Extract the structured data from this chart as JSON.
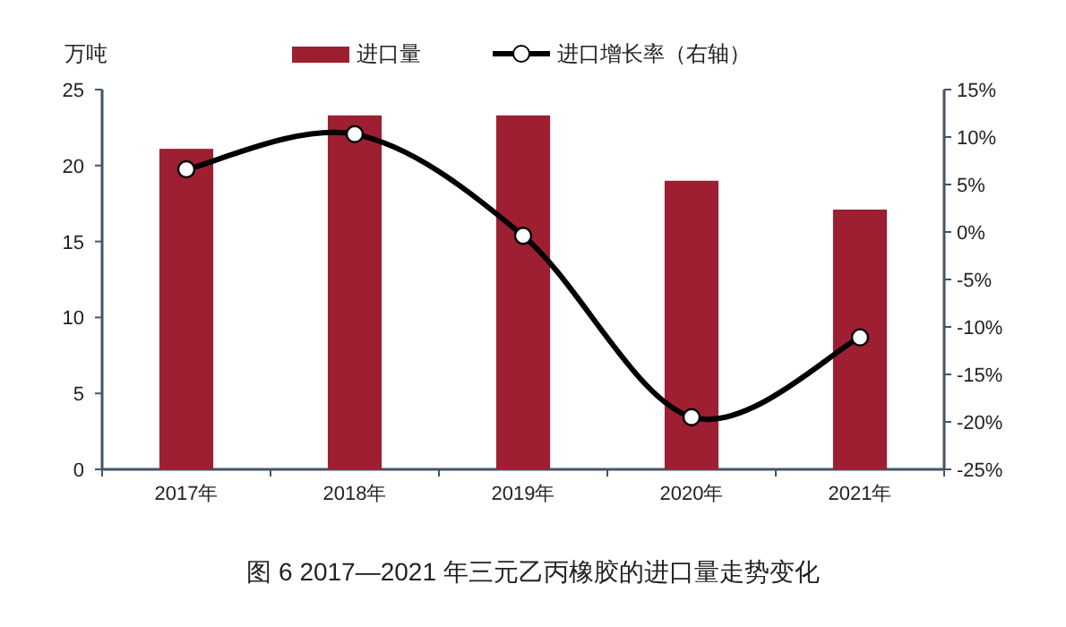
{
  "chart_data": {
    "type": "bar",
    "ylabel": "万吨",
    "categories": [
      "2017年",
      "2018年",
      "2019年",
      "2020年",
      "2021年"
    ],
    "series": [
      {
        "name": "进口量",
        "color": "#9e1f32",
        "values": [
          21.1,
          23.3,
          23.3,
          19.0,
          17.1
        ]
      },
      {
        "name": "进口增长率（右轴）",
        "type": "line",
        "axis": "y2",
        "color": "#000000",
        "marker": "circle",
        "values": [
          6.6,
          10.3,
          -0.4,
          -19.5,
          -11.1
        ]
      }
    ],
    "ylim": [
      0,
      25
    ],
    "yticks": [
      0,
      5,
      10,
      15,
      20,
      25
    ],
    "y2lim": [
      -25,
      15
    ],
    "y2ticks": [
      {
        "value": -25,
        "label": "-25%"
      },
      {
        "value": -20,
        "label": "-20%"
      },
      {
        "value": -15,
        "label": "-15%"
      },
      {
        "value": -10,
        "label": "-10%"
      },
      {
        "value": -5,
        "label": "-5%"
      },
      {
        "value": 0,
        "label": "0%"
      },
      {
        "value": 5,
        "label": "5%"
      },
      {
        "value": 10,
        "label": "10%"
      },
      {
        "value": 15,
        "label": "15%"
      }
    ],
    "legend": "top",
    "annotations": [
      "图 6  2017—2021 年三元乙丙橡胶的进口量走势变化"
    ]
  }
}
